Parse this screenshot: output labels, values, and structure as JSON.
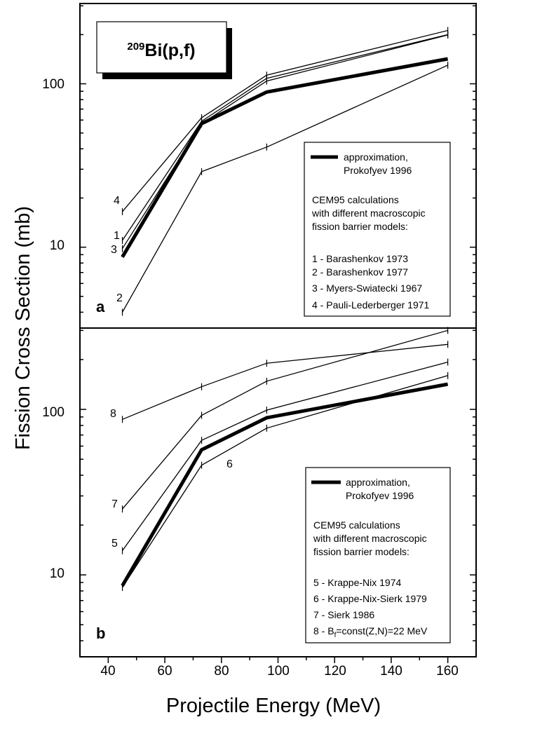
{
  "chart_data": {
    "type": "line",
    "title_sup": "209",
    "title_main": "Bi(p,f)",
    "xlabel": "Projectile Energy (MeV)",
    "ylabel": "Fission Cross Section (mb)",
    "x_ticks": [
      "40",
      "60",
      "80",
      "100",
      "120",
      "140",
      "160"
    ],
    "x_range": [
      30,
      170
    ],
    "x": [
      45,
      73,
      96,
      160
    ],
    "panels": [
      {
        "letter": "a",
        "y_scale": "log",
        "y_range": [
          3.2,
          310
        ],
        "y_ticks": [
          "10",
          "100"
        ],
        "legend": {
          "approx_line1": "approximation,",
          "approx_line2": "Prokofyev 1996",
          "intro1": "CEM95 calculations",
          "intro2": "with different macroscopic",
          "intro3": "fission barrier models:",
          "models": [
            "1 - Barashenkov 1973",
            "2 - Barashenkov 1977",
            "3 - Myers-Swiatecki 1967",
            "4 - Pauli-Lederberger 1971"
          ]
        },
        "series": [
          {
            "name": "approximation, Prokofyev 1996",
            "label": "",
            "thick": true,
            "values": [
              8.7,
              57,
              89,
              142
            ]
          },
          {
            "name": "1 - Barashenkov 1973",
            "label": "1",
            "thick": false,
            "values": [
              11,
              59,
              108,
              200
            ]
          },
          {
            "name": "2 - Barashenkov 1977",
            "label": "2",
            "thick": false,
            "values": [
              4.0,
              29,
              41,
              130
            ]
          },
          {
            "name": "3 - Myers-Swiatecki 1967",
            "label": "3",
            "thick": false,
            "values": [
              9.8,
              57,
              104,
              199
            ]
          },
          {
            "name": "4 - Pauli-Lederberger 1971",
            "label": "4",
            "thick": false,
            "values": [
              16.5,
              62,
              113,
              212
            ]
          }
        ]
      },
      {
        "letter": "b",
        "y_scale": "log",
        "y_range": [
          3.2,
          310
        ],
        "y_ticks": [
          "10",
          "100"
        ],
        "legend": {
          "approx_line1": "approximation,",
          "approx_line2": "Prokofyev 1996",
          "intro1": "CEM95 calculations",
          "intro2": "with different macroscopic",
          "intro3": "fission barrier models:",
          "models": [
            "5 - Krappe-Nix 1974",
            "6 - Krappe-Nix-Sierk 1979",
            "7 - Sierk 1986"
          ],
          "model8_prefix": "8 - B",
          "model8_sub": "f",
          "model8_suffix": "=const(Z,N)=22 MeV"
        },
        "series": [
          {
            "name": "approximation, Prokofyev 1996",
            "label": "",
            "thick": true,
            "values": [
              8.6,
              57,
              89,
              142
            ]
          },
          {
            "name": "5 - Krappe-Nix 1974",
            "label": "5",
            "thick": false,
            "values": [
              14,
              65,
              99,
              193
            ]
          },
          {
            "name": "6 - Krappe-Nix-Sierk 1979",
            "label": "6",
            "thick": false,
            "values": [
              8.4,
              46,
              77,
              160
            ]
          },
          {
            "name": "7 - Sierk 1986",
            "label": "7",
            "thick": false,
            "values": [
              25,
              92,
              148,
              300
            ]
          },
          {
            "name": "8 - Bf=const(Z,N)=22 MeV",
            "label": "8",
            "thick": false,
            "values": [
              87,
              137,
              190,
              247
            ]
          }
        ]
      }
    ]
  }
}
